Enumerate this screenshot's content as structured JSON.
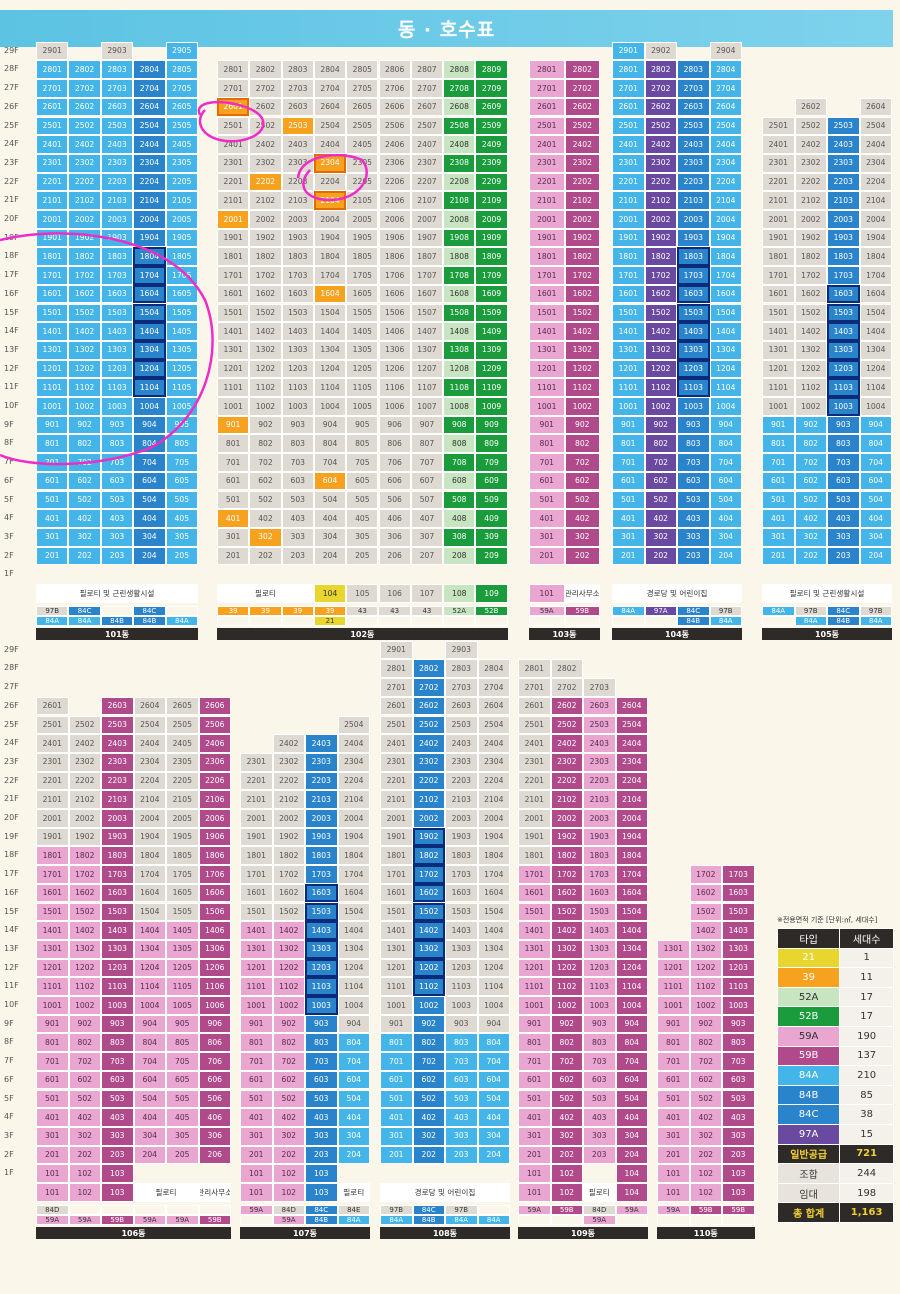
{
  "title": "동 · 호수표",
  "floors_top": [
    "29F",
    "28F",
    "27F",
    "26F",
    "25F",
    "24F",
    "23F",
    "22F",
    "21F",
    "20F",
    "19F",
    "18F",
    "17F",
    "16F",
    "15F",
    "14F",
    "13F",
    "12F",
    "11F",
    "10F",
    "9F",
    "8F",
    "7F",
    "6F",
    "5F",
    "4F",
    "3F",
    "2F",
    "1F"
  ],
  "floors_bottom": [
    "29F",
    "28F",
    "27F",
    "26F",
    "25F",
    "24F",
    "23F",
    "22F",
    "21F",
    "20F",
    "19F",
    "18F",
    "17F",
    "16F",
    "15F",
    "14F",
    "13F",
    "12F",
    "11F",
    "10F",
    "9F",
    "8F",
    "7F",
    "6F",
    "5F",
    "4F",
    "3F",
    "2F",
    "1F"
  ],
  "colors": {
    "59A": "#e8a6d0",
    "59B": "#b04a8a",
    "84A": "#44b5e8",
    "84B": "#2a84cc",
    "84C": "#2a84cc",
    "97A": "#6a4aa0",
    "21": "#e8d52e",
    "39": "#f6a21e",
    "52A": "#c7e5c0",
    "52B": "#1a9c3c"
  },
  "buildings": [
    {
      "id": "101",
      "label": "101동",
      "x": 36,
      "row": "top",
      "cw": 32.4,
      "top_floor": 29,
      "columns": [
        {
          "n": "01",
          "t": 29,
          "bot": 2,
          "cls": "b",
          "topcls": "g"
        },
        {
          "n": "02",
          "t": 28,
          "bot": 2,
          "cls": "b"
        },
        {
          "n": "03",
          "t": 29,
          "bot": 2,
          "cls": "b",
          "topcls": "g"
        },
        {
          "n": "04",
          "t": 28,
          "bot": 2,
          "cls": "m",
          "box": [
            11,
            18
          ]
        },
        {
          "n": "05",
          "t": 29,
          "bot": 2,
          "cls": "b"
        }
      ],
      "ground": [
        {
          "text": "필로티 및 근린생활시설",
          "span": 5,
          "cls": "w"
        }
      ],
      "types": [
        [
          "97B",
          "84C",
          "",
          "84C",
          ""
        ],
        [
          "84A",
          "84A",
          "84B",
          "84B",
          "84A"
        ]
      ]
    },
    {
      "id": "102",
      "label": "102동",
      "x": 217,
      "row": "top",
      "cw": 32.3,
      "top_floor": 28,
      "columns": [
        {
          "n": "01",
          "t": 28,
          "bot": 2,
          "cls": "g"
        },
        {
          "n": "02",
          "t": 28,
          "bot": 2,
          "cls": "g"
        },
        {
          "n": "03",
          "t": 28,
          "bot": 2,
          "cls": "g"
        },
        {
          "n": "04",
          "t": 28,
          "bot": 2,
          "cls": "g"
        },
        {
          "n": "05",
          "t": 28,
          "bot": 2,
          "cls": "g"
        },
        {
          "n": "06",
          "t": 28,
          "bot": 2,
          "cls": "g"
        },
        {
          "n": "07",
          "t": 28,
          "bot": 2,
          "cls": "g"
        },
        {
          "n": "08",
          "t": 28,
          "bot": 2,
          "cls": "l"
        },
        {
          "n": "09",
          "t": 28,
          "bot": 2,
          "cls": "G"
        }
      ],
      "ground": [
        {
          "text": "필로티",
          "span": 3,
          "cls": "w"
        },
        {
          "text": "104",
          "span": 1,
          "cls": "y"
        },
        {
          "text": "105",
          "span": 1,
          "cls": "g"
        },
        {
          "text": "106",
          "span": 1,
          "cls": "g"
        },
        {
          "text": "107",
          "span": 1,
          "cls": "g"
        },
        {
          "text": "108",
          "span": 1,
          "cls": "l"
        },
        {
          "text": "109",
          "span": 1,
          "cls": "G"
        }
      ],
      "types": [
        [
          "39",
          "39",
          "39",
          "39",
          "43",
          "43",
          "43",
          "52A",
          "52B"
        ],
        [
          "",
          "",
          "",
          "21",
          "",
          "",
          "",
          "",
          ""
        ]
      ]
    },
    {
      "id": "103",
      "label": "103동",
      "x": 529,
      "row": "top",
      "cw": 35.5,
      "top_floor": 28,
      "columns": [
        {
          "n": "01",
          "t": 28,
          "bot": 2,
          "cls": "p"
        },
        {
          "n": "02",
          "t": 28,
          "bot": 2,
          "cls": "v"
        }
      ],
      "ground": [
        {
          "text": "101",
          "span": 1,
          "cls": "p"
        },
        {
          "text": "관리사무소",
          "span": 1,
          "cls": "w"
        }
      ],
      "types": [
        [
          "59A",
          "59B"
        ],
        [
          "",
          ""
        ]
      ]
    },
    {
      "id": "104",
      "label": "104동",
      "x": 612,
      "row": "top",
      "cw": 32.5,
      "top_floor": 29,
      "columns": [
        {
          "n": "01",
          "t": 29,
          "bot": 2,
          "cls": "b"
        },
        {
          "n": "02",
          "t": 29,
          "bot": 2,
          "cls": "k",
          "topcls": "g"
        },
        {
          "n": "03",
          "t": 28,
          "bot": 2,
          "cls": "m",
          "box": [
            11,
            18
          ]
        },
        {
          "n": "04",
          "t": 29,
          "bot": 2,
          "cls": "b",
          "topcls": "g"
        }
      ],
      "ground": [
        {
          "text": "경로당 및 어린이집",
          "span": 4,
          "cls": "w"
        }
      ],
      "types": [
        [
          "84A",
          "97A",
          "84C",
          "97B"
        ],
        [
          "",
          "",
          "84B",
          "84A"
        ]
      ]
    },
    {
      "id": "105",
      "label": "105동",
      "x": 762,
      "row": "top",
      "cw": 32.5,
      "top_floor": 26,
      "columns": [
        {
          "n": "01",
          "t": 25,
          "bot": 2,
          "cls": "b",
          "upper": [
            10,
            25
          ],
          "ucls": "g"
        },
        {
          "n": "02",
          "t": 26,
          "bot": 2,
          "cls": "b",
          "upper": [
            10,
            26
          ],
          "ucls": "g"
        },
        {
          "n": "03",
          "t": 25,
          "bot": 2,
          "cls": "m",
          "box": [
            10,
            16
          ]
        },
        {
          "n": "04",
          "t": 26,
          "bot": 2,
          "cls": "b",
          "upper": [
            10,
            26
          ],
          "ucls": "g"
        }
      ],
      "ground": [
        {
          "text": "필로티 및 근린생활시설",
          "span": 4,
          "cls": "w"
        }
      ],
      "types": [
        [
          "84A",
          "97B",
          "84C",
          "97B"
        ],
        [
          "",
          "84A",
          "84B",
          "84A"
        ]
      ]
    },
    {
      "id": "106",
      "label": "106동",
      "x": 36,
      "row": "bottom",
      "cw": 32.5,
      "top_floor": 26,
      "columns": [
        {
          "n": "01",
          "t": 26,
          "bot": 1,
          "cls": "p",
          "upper": [
            19,
            26
          ],
          "ucls": "g"
        },
        {
          "n": "02",
          "t": 25,
          "bot": 1,
          "cls": "p",
          "upper": [
            19,
            25
          ],
          "ucls": "g"
        },
        {
          "n": "03",
          "t": 26,
          "bot": 1,
          "cls": "v"
        },
        {
          "n": "04",
          "t": 26,
          "bot": 2,
          "cls": "p",
          "upper": [
            15,
            26
          ],
          "ucls": "g"
        },
        {
          "n": "05",
          "t": 26,
          "bot": 2,
          "cls": "p",
          "upper": [
            15,
            26
          ],
          "ucls": "g"
        },
        {
          "n": "06",
          "t": 26,
          "bot": 2,
          "cls": "v"
        }
      ],
      "ground": [
        {
          "text": "101",
          "span": 1,
          "cls": "p"
        },
        {
          "text": "102",
          "span": 1,
          "cls": "p"
        },
        {
          "text": "103",
          "span": 1,
          "cls": "v"
        },
        {
          "text": "필로티",
          "span": 2,
          "cls": "w"
        },
        {
          "text": "관리사무소",
          "span": 1,
          "cls": "w"
        }
      ],
      "types": [
        [
          "84D",
          "",
          "",
          "",
          "",
          ""
        ],
        [
          "59A",
          "59A",
          "59B",
          "59A",
          "59A",
          "59B"
        ]
      ]
    },
    {
      "id": "107",
      "label": "107동",
      "x": 240,
      "row": "bottom",
      "cw": 32.5,
      "top_floor": 25,
      "columns": [
        {
          "n": "01",
          "t": 23,
          "bot": 1,
          "cls": "p",
          "upper": [
            15,
            23
          ],
          "ucls": "g"
        },
        {
          "n": "02",
          "t": 24,
          "bot": 1,
          "cls": "p",
          "upper": [
            15,
            24
          ],
          "ucls": "g"
        },
        {
          "n": "03",
          "t": 24,
          "bot": 1,
          "cls": "m",
          "box": [
            10,
            16
          ]
        },
        {
          "n": "04",
          "t": 25,
          "bot": 2,
          "cls": "b",
          "upper": [
            9,
            25
          ],
          "ucls": "g"
        }
      ],
      "ground": [
        {
          "text": "101",
          "span": 1,
          "cls": "p"
        },
        {
          "text": "102",
          "span": 1,
          "cls": "p"
        },
        {
          "text": "103",
          "span": 1,
          "cls": "m"
        },
        {
          "text": "필로티",
          "span": 1,
          "cls": "w"
        }
      ],
      "types": [
        [
          "59A",
          "84D",
          "84C",
          "84E"
        ],
        [
          "",
          "59A",
          "84B",
          "84A"
        ]
      ]
    },
    {
      "id": "108",
      "label": "108동",
      "x": 380,
      "row": "bottom",
      "cw": 32.5,
      "top_floor": 29,
      "columns": [
        {
          "n": "01",
          "t": 29,
          "bot": 2,
          "cls": "b",
          "upper": [
            9,
            29
          ],
          "ucls": "g"
        },
        {
          "n": "02",
          "t": 28,
          "bot": 2,
          "cls": "m",
          "box": [
            11,
            19
          ]
        },
        {
          "n": "03",
          "t": 29,
          "bot": 2,
          "cls": "b",
          "upper": [
            9,
            29
          ],
          "ucls": "g"
        },
        {
          "n": "04",
          "t": 28,
          "bot": 2,
          "cls": "b",
          "upper": [
            9,
            28
          ],
          "ucls": "g"
        }
      ],
      "ground": [
        {
          "text": "경로당 및 어린이집",
          "span": 4,
          "cls": "w"
        }
      ],
      "types": [
        [
          "97B",
          "84C",
          "97B",
          ""
        ],
        [
          "84A",
          "84B",
          "84A",
          "84A"
        ]
      ]
    },
    {
      "id": "109",
      "label": "109동",
      "x": 518,
      "row": "bottom",
      "cw": 32.5,
      "top_floor": 28,
      "columns": [
        {
          "n": "01",
          "t": 28,
          "bot": 1,
          "cls": "p",
          "upper": [
            18,
            28
          ],
          "ucls": "g"
        },
        {
          "n": "02",
          "t": 28,
          "bot": 1,
          "cls": "v",
          "upper": [
            27,
            28
          ],
          "ucls": "g"
        },
        {
          "n": "03",
          "t": 27,
          "bot": 2,
          "cls": "p",
          "upper": [
            27,
            27
          ],
          "ucls": "g"
        },
        {
          "n": "04",
          "t": 26,
          "bot": 1,
          "cls": "v"
        }
      ],
      "ground": [
        {
          "text": "101",
          "span": 1,
          "cls": "p"
        },
        {
          "text": "102",
          "span": 1,
          "cls": "v"
        },
        {
          "text": "필로티",
          "span": 1,
          "cls": "w"
        },
        {
          "text": "104",
          "span": 1,
          "cls": "v"
        }
      ],
      "types": [
        [
          "59A",
          "59B",
          "84D",
          "59A"
        ],
        [
          "",
          "",
          "59A",
          ""
        ]
      ]
    },
    {
      "id": "110",
      "label": "110동",
      "x": 657,
      "row": "bottom",
      "cw": 32.5,
      "top_floor": 17,
      "columns": [
        {
          "n": "01",
          "t": 13,
          "bot": 1,
          "cls": "p"
        },
        {
          "n": "02",
          "t": 17,
          "bot": 1,
          "cls": "p"
        },
        {
          "n": "03",
          "t": 17,
          "bot": 1,
          "cls": "v"
        }
      ],
      "ground": [
        {
          "text": "101",
          "span": 1,
          "cls": "p"
        },
        {
          "text": "102",
          "span": 1,
          "cls": "p"
        },
        {
          "text": "103",
          "span": 1,
          "cls": "v"
        }
      ],
      "types": [
        [
          "59A",
          "59B",
          "59B"
        ],
        [
          "",
          "",
          ""
        ]
      ]
    }
  ],
  "highlights": [
    [
      "2601",
      "o2"
    ],
    [
      "2503",
      "o"
    ],
    [
      "2304",
      "o2"
    ],
    [
      "2202",
      "o"
    ],
    [
      "2104",
      "o2"
    ],
    [
      "2001",
      "o"
    ],
    [
      "1604",
      "o"
    ],
    [
      "901",
      "o"
    ],
    [
      "604",
      "o"
    ],
    [
      "401",
      "o"
    ],
    [
      "302",
      "o"
    ],
    [
      "2308",
      "G"
    ],
    [
      "2208",
      "G"
    ]
  ],
  "legend": {
    "note": "※전용면적 기준 [단위:㎡, 세대수]",
    "head": [
      "타입",
      "세대수"
    ],
    "rows": [
      [
        "21",
        "1",
        "#e8d52e"
      ],
      [
        "39",
        "11",
        "#f6a21e"
      ],
      [
        "52A",
        "17",
        "#c7e5c0"
      ],
      [
        "52B",
        "17",
        "#1a9c3c"
      ],
      [
        "59A",
        "190",
        "#e8a6d0"
      ],
      [
        "59B",
        "137",
        "#b04a8a"
      ],
      [
        "84A",
        "210",
        "#44b5e8"
      ],
      [
        "84B",
        "85",
        "#2a84cc"
      ],
      [
        "84C",
        "38",
        "#2a84cc"
      ],
      [
        "97A",
        "15",
        "#6a4aa0"
      ]
    ],
    "sum": [
      [
        "일반공급",
        "721"
      ],
      [
        "조합",
        "244"
      ],
      [
        "임대",
        "198"
      ],
      [
        "총 합계",
        "1,163"
      ]
    ]
  }
}
